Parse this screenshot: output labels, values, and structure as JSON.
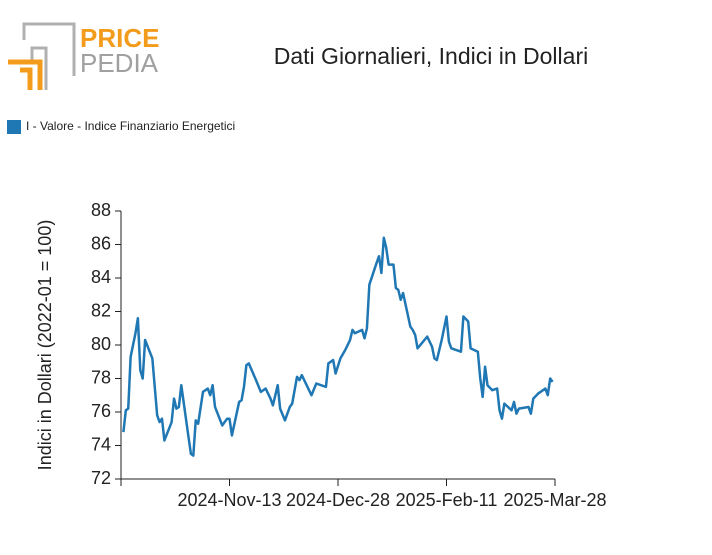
{
  "logo": {
    "top": "PRICE",
    "bottom": "PEDIA"
  },
  "chart_data": {
    "type": "line",
    "title": "Dati Giornalieri, Indici in Dollari",
    "ylabel": "Indici in Dollari (2022-01 = 100)",
    "legend": "top-left",
    "xlim": [
      "2024-09-29",
      "2025-03-28"
    ],
    "xticks": [
      {
        "value": "2024-11-13",
        "label": "2024-Nov-13"
      },
      {
        "value": "2024-12-28",
        "label": "2024-Dec-28"
      },
      {
        "value": "2025-02-11",
        "label": "2025-Feb-11"
      },
      {
        "value": "2025-03-28",
        "label": "2025-Mar-28"
      }
    ],
    "ylim": [
      72,
      88
    ],
    "yticks": [
      72,
      74,
      76,
      78,
      80,
      82,
      84,
      86,
      88
    ],
    "x": [
      "2024-09-30",
      "2024-10-01",
      "2024-10-02",
      "2024-10-03",
      "2024-10-05",
      "2024-10-06",
      "2024-10-07",
      "2024-10-08",
      "2024-10-09",
      "2024-10-12",
      "2024-10-14",
      "2024-10-15",
      "2024-10-16",
      "2024-10-17",
      "2024-10-20",
      "2024-10-21",
      "2024-10-22",
      "2024-10-23",
      "2024-10-24",
      "2024-10-27",
      "2024-10-28",
      "2024-10-29",
      "2024-10-30",
      "2024-10-31",
      "2024-11-02",
      "2024-11-04",
      "2024-11-05",
      "2024-11-06",
      "2024-11-07",
      "2024-11-10",
      "2024-11-12",
      "2024-11-13",
      "2024-11-14",
      "2024-11-17",
      "2024-11-18",
      "2024-11-19",
      "2024-11-20",
      "2024-11-21",
      "2024-11-24",
      "2024-11-26",
      "2024-11-28",
      "2024-11-30",
      "2024-12-01",
      "2024-12-03",
      "2024-12-04",
      "2024-12-06",
      "2024-12-08",
      "2024-12-09",
      "2024-12-11",
      "2024-12-12",
      "2024-12-13",
      "2024-12-17",
      "2024-12-19",
      "2024-12-23",
      "2024-12-24",
      "2024-12-26",
      "2024-12-27",
      "2024-12-29",
      "2024-12-31",
      "2025-01-02",
      "2025-01-03",
      "2025-01-04",
      "2025-01-07",
      "2025-01-08",
      "2025-01-09",
      "2025-01-10",
      "2025-01-13",
      "2025-01-14",
      "2025-01-15",
      "2025-01-16",
      "2025-01-17",
      "2025-01-18",
      "2025-01-20",
      "2025-01-21",
      "2025-01-22",
      "2025-01-23",
      "2025-01-24",
      "2025-01-27",
      "2025-01-28",
      "2025-01-29",
      "2025-01-30",
      "2025-02-03",
      "2025-02-05",
      "2025-02-06",
      "2025-02-07",
      "2025-02-09",
      "2025-02-11",
      "2025-02-12",
      "2025-02-13",
      "2025-02-17",
      "2025-02-18",
      "2025-02-20",
      "2025-02-21",
      "2025-02-24",
      "2025-02-25",
      "2025-02-26",
      "2025-02-27",
      "2025-02-28",
      "2025-03-02",
      "2025-03-04",
      "2025-03-05",
      "2025-03-06",
      "2025-03-07",
      "2025-03-10",
      "2025-03-11",
      "2025-03-12",
      "2025-03-13",
      "2025-03-17",
      "2025-03-18",
      "2025-03-19",
      "2025-03-21",
      "2025-03-24",
      "2025-03-25",
      "2025-03-26",
      "2025-03-27"
    ],
    "series": [
      {
        "name": "I - Valore - Indice Finanziario Energetici",
        "color": "#1f77b4",
        "values": [
          74.8,
          76.1,
          76.2,
          79.3,
          80.7,
          81.6,
          78.5,
          78.0,
          80.3,
          79.2,
          75.8,
          75.4,
          75.6,
          74.3,
          75.4,
          76.8,
          76.2,
          76.3,
          77.6,
          74.5,
          73.5,
          73.4,
          75.5,
          75.3,
          77.2,
          77.4,
          77.0,
          77.6,
          76.3,
          75.2,
          75.6,
          75.6,
          74.6,
          76.6,
          76.7,
          77.5,
          78.8,
          78.9,
          77.9,
          77.2,
          77.4,
          76.8,
          76.4,
          77.6,
          76.2,
          75.5,
          76.3,
          76.5,
          78.1,
          77.9,
          78.2,
          77.0,
          77.7,
          77.5,
          78.9,
          79.1,
          78.3,
          79.2,
          79.7,
          80.3,
          80.9,
          80.7,
          80.9,
          80.4,
          81.0,
          83.6,
          84.9,
          85.3,
          84.3,
          86.4,
          85.8,
          84.8,
          84.8,
          83.4,
          83.3,
          82.7,
          83.1,
          81.1,
          80.9,
          80.6,
          79.8,
          80.5,
          79.9,
          79.2,
          79.1,
          80.3,
          81.7,
          80.2,
          79.8,
          79.6,
          81.7,
          81.4,
          79.8,
          79.6,
          78.0,
          76.9,
          78.7,
          77.6,
          77.3,
          77.4,
          76.1,
          75.6,
          76.5,
          76.1,
          76.6,
          75.9,
          76.2,
          76.3,
          75.9,
          76.8,
          77.1,
          77.4,
          77.0,
          78.0,
          77.8
        ]
      }
    ]
  }
}
